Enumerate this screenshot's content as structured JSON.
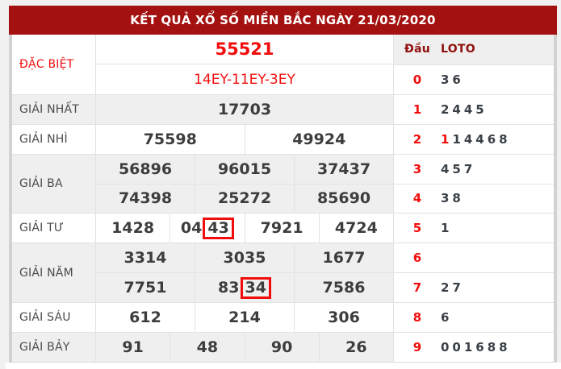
{
  "title": "KẾT QUẢ XỔ SỐ MIỀN BẮC NGÀY 21/03/2020",
  "colors": {
    "titlebar_bg": "#a31110",
    "accent_red": "#f20d0d",
    "header_maroon": "#8f100d",
    "alt_row_bg": "#efefef"
  },
  "prizes": {
    "special": {
      "label": "ĐẶC BIỆT",
      "number": "55521",
      "codes": "14EY-11EY-3EY"
    },
    "first": {
      "label": "GIẢI NHẤT",
      "numbers": [
        "17703"
      ]
    },
    "second": {
      "label": "GIẢI NHÌ",
      "numbers": [
        "75598",
        "49924"
      ]
    },
    "third": {
      "label": "GIẢI BA",
      "row1": [
        "56896",
        "96015",
        "37437"
      ],
      "row2": [
        "74398",
        "25272",
        "85690"
      ]
    },
    "fourth": {
      "label": "GIẢI TƯ",
      "n1": "1428",
      "n2_pre": "04",
      "n2_boxed": "43",
      "n3": "7921",
      "n4": "4724"
    },
    "fifth": {
      "label": "GIẢI NĂM",
      "row1": [
        "3314",
        "3035",
        "1677"
      ],
      "r2a": "7751",
      "r2b_pre": "83",
      "r2b_boxed": "34",
      "r2c": "7586"
    },
    "sixth": {
      "label": "GIẢI SÁU",
      "numbers": [
        "612",
        "214",
        "306"
      ]
    },
    "seventh": {
      "label": "GIẢI BẢY",
      "numbers": [
        "91",
        "48",
        "90",
        "26"
      ]
    }
  },
  "loto_panel": {
    "dau_header": "Đầu",
    "loto_header": "LOTO",
    "rows": [
      {
        "digit": "0",
        "value": "36"
      },
      {
        "digit": "1",
        "value": "2445"
      },
      {
        "digit": "2",
        "highlight": "1",
        "value": "14468"
      },
      {
        "digit": "3",
        "value": "457"
      },
      {
        "digit": "4",
        "value": "38"
      },
      {
        "digit": "5",
        "value": "1"
      },
      {
        "digit": "6",
        "value": ""
      },
      {
        "digit": "7",
        "value": "27"
      },
      {
        "digit": "8",
        "value": "6"
      },
      {
        "digit": "9",
        "value": "001688"
      }
    ]
  }
}
